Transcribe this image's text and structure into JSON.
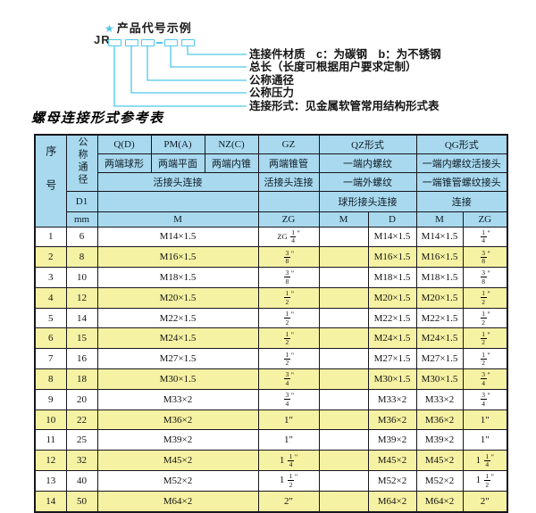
{
  "colors": {
    "accent_cyan": "#4ec7ea",
    "header_blue": "#a9d9ee",
    "row_yellow": "#f6f2a3",
    "border": "#16161c"
  },
  "diagram": {
    "star_icon": "★",
    "heading": "产品代号示例",
    "code_prefix": "JR",
    "labels": [
      "连接件材质　c：为碳钢　b：为不锈钢",
      "总长（长度可根据用户要求定制）",
      "公称通径",
      "公称压力",
      "连接形式：见金属软管常用结构形式表"
    ]
  },
  "table": {
    "title": "螺母连接形式参考表",
    "header": {
      "seq": "序号",
      "nominal_diameter": "公称通径",
      "d1": "D1",
      "mm": "mm",
      "q_code": "Q(D)",
      "q_desc": "两端球形",
      "pm_code": "PM(A)",
      "pm_desc": "两端平面",
      "nz_code": "NZ(C)",
      "nz_desc": "两端内锥",
      "gz_code": "GZ",
      "gz_desc": "两端锥管",
      "union_connect": "活接头连接",
      "gz_connect": "活接头连接",
      "m_label": "M",
      "zg_label": "ZG",
      "qz_title": "QZ形式",
      "qz_row2": "一端内螺纹",
      "qz_row3": "一端外螺纹",
      "qz_row4": "球形接头连接",
      "qz_m": "M",
      "qz_d": "D",
      "qg_title": "QG形式",
      "qg_row2": "一端内螺纹活接头",
      "qg_row3": "一端锥管螺纹接头",
      "qg_row4": "连接",
      "qg_m": "M",
      "qg_zg": "ZG"
    },
    "rows": [
      {
        "no": "1",
        "dn": "6",
        "m": "M14×1.5",
        "zg": "ZG 1/4\"",
        "qz_m": "",
        "qz_d": "M14×1.5",
        "qg_m": "M14×1.5",
        "qg_zg": "1/4\""
      },
      {
        "no": "2",
        "dn": "8",
        "m": "M16×1.5",
        "zg": "3/8\"",
        "qz_m": "",
        "qz_d": "M16×1.5",
        "qg_m": "M16×1.5",
        "qg_zg": "3/8\""
      },
      {
        "no": "3",
        "dn": "10",
        "m": "M18×1.5",
        "zg": "3/8\"",
        "qz_m": "",
        "qz_d": "M18×1.5",
        "qg_m": "M18×1.5",
        "qg_zg": "3/8\""
      },
      {
        "no": "4",
        "dn": "12",
        "m": "M20×1.5",
        "zg": "1/2\"",
        "qz_m": "",
        "qz_d": "M20×1.5",
        "qg_m": "M20×1.5",
        "qg_zg": "1/2\""
      },
      {
        "no": "5",
        "dn": "14",
        "m": "M22×1.5",
        "zg": "1/2\"",
        "qz_m": "",
        "qz_d": "M22×1.5",
        "qg_m": "M22×1.5",
        "qg_zg": "1/2\""
      },
      {
        "no": "6",
        "dn": "15",
        "m": "M24×1.5",
        "zg": "1/2\"",
        "qz_m": "",
        "qz_d": "M24×1.5",
        "qg_m": "M24×1.5",
        "qg_zg": "1/2\""
      },
      {
        "no": "7",
        "dn": "16",
        "m": "M27×1.5",
        "zg": "1/2\"",
        "qz_m": "",
        "qz_d": "M27×1.5",
        "qg_m": "M27×1.5",
        "qg_zg": "1/2\""
      },
      {
        "no": "8",
        "dn": "18",
        "m": "M30×1.5",
        "zg": "3/4\"",
        "qz_m": "",
        "qz_d": "M30×1.5",
        "qg_m": "M30×1.5",
        "qg_zg": "3/4\""
      },
      {
        "no": "9",
        "dn": "20",
        "m": "M33×2",
        "zg": "3/4\"",
        "qz_m": "",
        "qz_d": "M33×2",
        "qg_m": "M33×2",
        "qg_zg": "3/4\""
      },
      {
        "no": "10",
        "dn": "22",
        "m": "M36×2",
        "zg": "1\"",
        "qz_m": "",
        "qz_d": "M36×2",
        "qg_m": "M36×2",
        "qg_zg": "1\""
      },
      {
        "no": "11",
        "dn": "25",
        "m": "M39×2",
        "zg": "1\"",
        "qz_m": "",
        "qz_d": "M39×2",
        "qg_m": "M39×2",
        "qg_zg": "1\""
      },
      {
        "no": "12",
        "dn": "32",
        "m": "M45×2",
        "zg": "1 1/4\"",
        "qz_m": "",
        "qz_d": "M45×2",
        "qg_m": "M45×2",
        "qg_zg": "1 1/4\""
      },
      {
        "no": "13",
        "dn": "40",
        "m": "M52×2",
        "zg": "1 1/2\"",
        "qz_m": "",
        "qz_d": "M52×2",
        "qg_m": "M52×2",
        "qg_zg": "1 1/2\""
      },
      {
        "no": "14",
        "dn": "50",
        "m": "M64×2",
        "zg": "2\"",
        "qz_m": "",
        "qz_d": "M64×2",
        "qg_m": "M64×2",
        "qg_zg": "2\""
      }
    ]
  }
}
